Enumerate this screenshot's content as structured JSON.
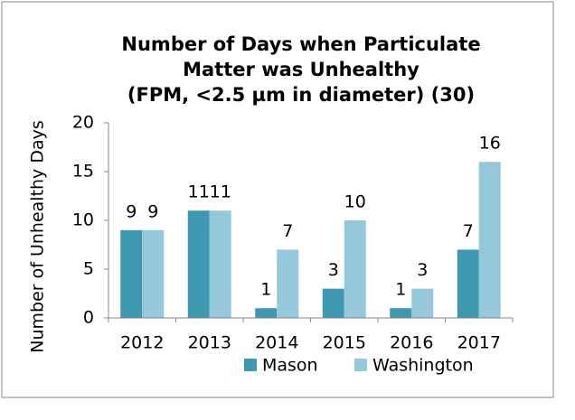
{
  "chart_data": {
    "type": "bar",
    "title": [
      "Number of Days when Particulate",
      "Matter was Unhealthy",
      "(FPM, <2.5 µm in diameter) (30)"
    ],
    "y_label": "Number of Unhealthy Days",
    "categories": [
      "2012",
      "2013",
      "2014",
      "2015",
      "2016",
      "2017"
    ],
    "series": [
      {
        "name": "Mason",
        "color": "#3e98af",
        "values": [
          9,
          11,
          1,
          3,
          1,
          7
        ]
      },
      {
        "name": "Washington",
        "color": "#95c8da",
        "values": [
          9,
          11,
          7,
          10,
          3,
          16
        ]
      }
    ],
    "ylim": [
      0,
      20
    ],
    "yticks": [
      0,
      5,
      10,
      15,
      20
    ],
    "grid": false,
    "legend": "bottom"
  }
}
